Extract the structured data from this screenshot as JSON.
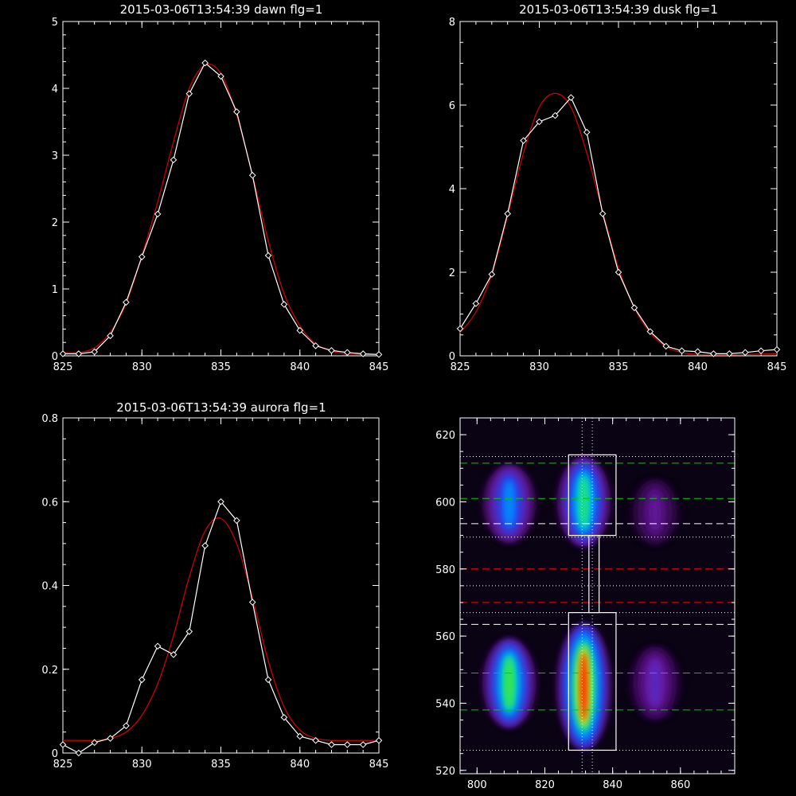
{
  "chart_data": [
    {
      "type": "line",
      "title": "2015-03-06T13:54:39 dawn flg=1",
      "xlim": [
        825,
        845
      ],
      "ylim": [
        0,
        5
      ],
      "xticks": [
        825,
        830,
        835,
        840,
        845
      ],
      "yticks": [
        0,
        1,
        2,
        3,
        4,
        5
      ],
      "grid": false,
      "series": [
        {
          "color": "#ffffff",
          "marker": "diamond",
          "x": [
            825,
            826,
            827,
            828,
            829,
            830,
            831,
            832,
            833,
            834,
            835,
            836,
            837,
            838,
            839,
            840,
            841,
            842,
            843,
            844,
            845
          ],
          "y": [
            0.03,
            0.03,
            0.06,
            0.3,
            0.8,
            1.48,
            2.12,
            2.93,
            3.92,
            4.38,
            4.18,
            3.65,
            2.7,
            1.5,
            0.77,
            0.38,
            0.15,
            0.08,
            0.05,
            0.03,
            0.02
          ]
        },
        {
          "color": "#cc0000",
          "marker": "none",
          "x": [
            825,
            826,
            827,
            828,
            829,
            830,
            831,
            832,
            833,
            834,
            835,
            836,
            837,
            838,
            839,
            840,
            841,
            842,
            843,
            844,
            845
          ],
          "y": [
            0.05,
            0.05,
            0.12,
            0.35,
            0.78,
            1.5,
            2.3,
            3.2,
            4.0,
            4.35,
            4.22,
            3.6,
            2.7,
            1.72,
            0.93,
            0.45,
            0.18,
            0.07,
            0.03,
            0.02,
            0.02
          ]
        }
      ]
    },
    {
      "type": "line",
      "title": "2015-03-06T13:54:39 dusk flg=1",
      "xlim": [
        825,
        845
      ],
      "ylim": [
        0,
        8
      ],
      "xticks": [
        825,
        830,
        835,
        840,
        845
      ],
      "yticks": [
        0,
        2,
        4,
        6,
        8
      ],
      "grid": false,
      "series": [
        {
          "color": "#ffffff",
          "marker": "diamond",
          "x": [
            825,
            826,
            827,
            828,
            829,
            830,
            831,
            832,
            833,
            834,
            835,
            836,
            837,
            838,
            839,
            840,
            841,
            842,
            843,
            844,
            845
          ],
          "y": [
            0.65,
            1.25,
            1.95,
            3.4,
            5.15,
            5.6,
            5.75,
            6.18,
            5.35,
            3.4,
            2.0,
            1.15,
            0.58,
            0.23,
            0.12,
            0.1,
            0.05,
            0.05,
            0.08,
            0.12,
            0.15
          ]
        },
        {
          "color": "#cc0000",
          "marker": "none",
          "x": [
            825,
            826,
            827,
            828,
            829,
            830,
            831,
            832,
            833,
            834,
            835,
            836,
            837,
            838,
            839,
            840,
            841,
            842,
            843,
            844,
            845
          ],
          "y": [
            0.55,
            1.05,
            1.95,
            3.35,
            4.85,
            5.95,
            6.28,
            5.95,
            4.85,
            3.45,
            2.1,
            1.15,
            0.55,
            0.22,
            0.08,
            0.03,
            0.02,
            0.02,
            0.03,
            0.04,
            0.05
          ]
        }
      ]
    },
    {
      "type": "line",
      "title": "2015-03-06T13:54:39 aurora flg=1",
      "xlim": [
        825,
        845
      ],
      "ylim": [
        0,
        0.8
      ],
      "xticks": [
        825,
        830,
        835,
        840,
        845
      ],
      "yticks": [
        0,
        0.2,
        0.4,
        0.6,
        0.8
      ],
      "grid": false,
      "series": [
        {
          "color": "#ffffff",
          "marker": "diamond",
          "x": [
            825,
            826,
            827,
            828,
            829,
            830,
            831,
            832,
            833,
            834,
            835,
            836,
            837,
            838,
            839,
            840,
            841,
            842,
            843,
            844,
            845
          ],
          "y": [
            0.02,
            0.0,
            0.025,
            0.035,
            0.065,
            0.175,
            0.255,
            0.235,
            0.29,
            0.495,
            0.6,
            0.555,
            0.36,
            0.175,
            0.085,
            0.04,
            0.03,
            0.02,
            0.02,
            0.02,
            0.03
          ]
        },
        {
          "color": "#cc0000",
          "marker": "none",
          "x": [
            825,
            826,
            827,
            828,
            829,
            830,
            831,
            832,
            833,
            834,
            835,
            836,
            837,
            838,
            839,
            840,
            841,
            842,
            843,
            844,
            845
          ],
          "y": [
            0.03,
            0.03,
            0.03,
            0.035,
            0.05,
            0.09,
            0.165,
            0.28,
            0.42,
            0.53,
            0.56,
            0.5,
            0.37,
            0.22,
            0.11,
            0.055,
            0.035,
            0.03,
            0.03,
            0.03,
            0.03
          ]
        }
      ]
    },
    {
      "type": "heatmap",
      "xlim": [
        795,
        876
      ],
      "ylim": [
        519,
        625
      ],
      "xticks": [
        800,
        820,
        840,
        860
      ],
      "yticks": [
        520,
        540,
        560,
        580,
        600,
        620
      ],
      "grid": false,
      "colormap": "rainbow",
      "intensity_columns": [
        {
          "x": 809.5,
          "y_ranges": [
            [
              589,
              610,
              0.55
            ],
            [
              534,
              558,
              0.8
            ]
          ]
        },
        {
          "x": 831.5,
          "y_ranges": [
            [
              588,
              612,
              0.75
            ],
            [
              528,
              562,
              1.0
            ]
          ]
        },
        {
          "x": 852.5,
          "y_ranges": [
            [
              588,
              606,
              0.22
            ],
            [
              536,
              556,
              0.3
            ]
          ]
        }
      ],
      "horizontal_lines": [
        {
          "y": 611.5,
          "color": "#00cc00",
          "style": "dashed"
        },
        {
          "y": 601,
          "color": "#00cc00",
          "style": "dashed"
        },
        {
          "y": 593.5,
          "color": "#ffffff",
          "style": "dashed"
        },
        {
          "y": 580,
          "color": "#ff0000",
          "style": "dashed"
        },
        {
          "y": 570,
          "color": "#ff0000",
          "style": "dashed"
        },
        {
          "y": 563.5,
          "color": "#ffffff",
          "style": "dashed"
        },
        {
          "y": 549,
          "color": "#00cc00",
          "style": "dashed"
        },
        {
          "y": 538,
          "color": "#00cc00",
          "style": "dashed"
        },
        {
          "y": 613.5,
          "color": "#ffffff",
          "style": "dotted"
        },
        {
          "y": 589.5,
          "color": "#ffffff",
          "style": "dotted"
        },
        {
          "y": 575,
          "color": "#ffffff",
          "style": "dotted"
        },
        {
          "y": 567,
          "color": "#ffffff",
          "style": "dotted"
        },
        {
          "y": 526,
          "color": "#ffffff",
          "style": "dotted"
        }
      ],
      "vertical_lines": [
        {
          "x": 831,
          "color": "#ffffff",
          "style": "dotted"
        },
        {
          "x": 834,
          "color": "#ffffff",
          "style": "dotted"
        }
      ],
      "boxes": [
        {
          "x0": 827,
          "x1": 841,
          "y0": 590,
          "y1": 614
        },
        {
          "x0": 827,
          "x1": 841,
          "y0": 526,
          "y1": 567
        }
      ],
      "connector": {
        "x": [
          833,
          836
        ],
        "y": [
          567,
          590
        ]
      }
    }
  ]
}
